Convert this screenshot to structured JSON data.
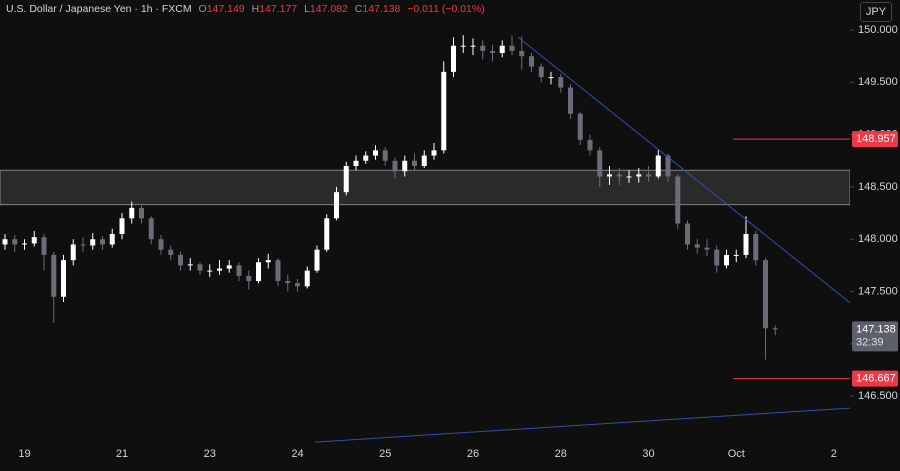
{
  "header": {
    "title": "U.S. Dollar / Japanese Yen · 1h · FXCM",
    "ohlc": [
      {
        "label": "O",
        "value": "147.149"
      },
      {
        "label": "H",
        "value": "147.177"
      },
      {
        "label": "L",
        "value": "147.082"
      },
      {
        "label": "C",
        "value": "147.138"
      }
    ],
    "change": "−0.011 (−0.01%)",
    "currency": "JPY"
  },
  "chart_data": {
    "type": "candlestick",
    "up_color": "#ffffff",
    "down_color": "#6a6d78",
    "categories": [
      null,
      null,
      "19",
      null,
      null,
      null,
      null,
      null,
      null,
      null,
      null,
      null,
      "21",
      null,
      null,
      null,
      null,
      null,
      null,
      null,
      null,
      "23",
      null,
      null,
      null,
      null,
      null,
      null,
      null,
      null,
      "24",
      null,
      null,
      null,
      null,
      null,
      null,
      null,
      null,
      "25",
      null,
      null,
      null,
      null,
      null,
      null,
      null,
      null,
      "26",
      null,
      null,
      null,
      null,
      null,
      null,
      null,
      null,
      "28",
      null,
      null,
      null,
      null,
      null,
      null,
      null,
      null,
      "30",
      null,
      null,
      null,
      null,
      null,
      null,
      null,
      null,
      "Oct",
      null,
      null,
      null,
      null,
      null,
      null,
      null,
      null,
      null,
      "2"
    ],
    "open": [
      147.95,
      148.0,
      147.95,
      147.96,
      148.02,
      147.85,
      147.45,
      147.8,
      147.95,
      147.94,
      148.0,
      147.95,
      148.05,
      148.2,
      148.3,
      148.2,
      148.0,
      147.9,
      147.85,
      147.75,
      147.76,
      147.7,
      147.7,
      147.72,
      147.75,
      147.65,
      147.6,
      147.78,
      147.8,
      147.6,
      147.58,
      147.55,
      147.7,
      147.9,
      148.2,
      148.45,
      148.7,
      148.75,
      148.8,
      148.85,
      148.75,
      148.65,
      148.75,
      148.7,
      148.8,
      148.85,
      149.6,
      149.85,
      149.85,
      149.85,
      149.8,
      149.78,
      149.85,
      149.8,
      149.75,
      149.65,
      149.55,
      149.55,
      149.45,
      149.2,
      148.95,
      148.85,
      148.6,
      148.62,
      148.6,
      148.6,
      148.62,
      148.6,
      148.8,
      148.6,
      148.15,
      147.95,
      147.92,
      147.9,
      147.75,
      147.85,
      147.85,
      148.05,
      147.8,
      147.149,
      null,
      null,
      null,
      null,
      null,
      null
    ],
    "high": [
      148.05,
      148.04,
      148.0,
      148.08,
      148.05,
      147.88,
      147.85,
      148.0,
      148.02,
      148.06,
      148.03,
      148.1,
      148.25,
      148.36,
      148.32,
      148.22,
      148.04,
      147.94,
      147.88,
      147.82,
      147.78,
      147.76,
      147.8,
      147.8,
      147.78,
      147.7,
      147.82,
      147.86,
      147.82,
      147.66,
      147.62,
      147.74,
      147.94,
      148.24,
      148.5,
      148.74,
      148.8,
      148.84,
      148.9,
      148.88,
      148.78,
      148.8,
      148.82,
      148.85,
      148.92,
      149.7,
      149.93,
      149.95,
      149.92,
      149.9,
      149.86,
      149.9,
      149.95,
      149.94,
      149.78,
      149.68,
      149.6,
      149.58,
      149.48,
      149.22,
      149.0,
      148.88,
      148.7,
      148.68,
      148.66,
      148.68,
      148.7,
      148.86,
      148.82,
      148.62,
      148.18,
      148.0,
      148.0,
      147.94,
      147.9,
      147.9,
      148.22,
      148.08,
      147.82,
      147.177,
      null,
      null,
      null,
      null,
      null,
      null
    ],
    "low": [
      147.9,
      147.88,
      147.9,
      147.93,
      147.7,
      147.2,
      147.4,
      147.75,
      147.88,
      147.9,
      147.9,
      147.92,
      148.0,
      148.15,
      148.15,
      147.95,
      147.85,
      147.8,
      147.7,
      147.7,
      147.66,
      147.64,
      147.66,
      147.68,
      147.6,
      147.52,
      147.58,
      147.72,
      147.55,
      147.5,
      147.5,
      147.53,
      147.68,
      147.88,
      148.18,
      148.42,
      148.66,
      148.72,
      148.76,
      148.7,
      148.58,
      148.6,
      148.66,
      148.68,
      148.76,
      148.82,
      149.55,
      149.78,
      149.76,
      149.72,
      149.7,
      149.74,
      149.76,
      149.62,
      149.6,
      149.5,
      149.48,
      149.4,
      149.15,
      148.9,
      148.8,
      148.5,
      148.52,
      148.52,
      148.54,
      148.54,
      148.55,
      148.58,
      148.55,
      148.1,
      147.9,
      147.86,
      147.84,
      147.68,
      147.72,
      147.78,
      147.82,
      147.75,
      146.85,
      147.082,
      null,
      null,
      null,
      null,
      null,
      null
    ],
    "close": [
      148.0,
      147.95,
      147.96,
      148.02,
      147.85,
      147.45,
      147.8,
      147.95,
      147.94,
      148.0,
      147.95,
      148.05,
      148.2,
      148.3,
      148.2,
      148.0,
      147.9,
      147.85,
      147.75,
      147.76,
      147.7,
      147.7,
      147.72,
      147.75,
      147.65,
      147.6,
      147.78,
      147.8,
      147.6,
      147.58,
      147.55,
      147.7,
      147.9,
      148.2,
      148.45,
      148.7,
      148.75,
      148.8,
      148.85,
      148.75,
      148.65,
      148.75,
      148.7,
      148.8,
      148.85,
      149.6,
      149.85,
      149.85,
      149.85,
      149.8,
      149.78,
      149.85,
      149.8,
      149.75,
      149.65,
      149.55,
      149.55,
      149.45,
      149.2,
      148.95,
      148.85,
      148.6,
      148.62,
      148.6,
      148.6,
      148.62,
      148.6,
      148.8,
      148.6,
      148.15,
      147.95,
      147.92,
      147.9,
      147.75,
      147.85,
      147.85,
      148.05,
      147.8,
      147.149,
      147.138,
      null,
      null,
      null,
      null,
      null,
      null
    ],
    "ylim": [
      146.033,
      150.287
    ],
    "yticks": [
      {
        "value": 146.5,
        "label": "146.500"
      },
      {
        "value": 147,
        "label": "147.000"
      },
      {
        "value": 147.5,
        "label": "147.500"
      },
      {
        "value": 148,
        "label": "148.000"
      },
      {
        "value": 148.5,
        "label": "148.500"
      },
      {
        "value": 149,
        "label": "149.000"
      },
      {
        "value": 149.5,
        "label": "149.500"
      },
      {
        "value": 150,
        "label": "150.000"
      }
    ],
    "zone": [
      148.33,
      148.66
    ],
    "zone_color": "#2a2a2a",
    "levels": [
      148.957,
      146.667
    ],
    "level_color": "#f23645",
    "trendlines": [
      {
        "x": [
          52.6,
          86.7
        ],
        "y": [
          149.933,
          147.39
        ]
      },
      {
        "x": [
          31.8,
          86.7
        ],
        "y": [
          146.061,
          146.386
        ]
      }
    ],
    "trendline_color": "#2f4fa8",
    "last_price": 147.138,
    "countdown": "32:39",
    "last_color": "#5d606b"
  }
}
